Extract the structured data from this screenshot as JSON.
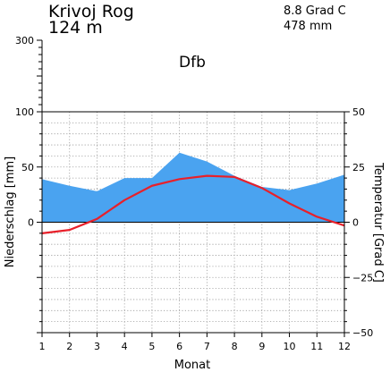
{
  "header": {
    "station": "Krivoj Rog",
    "elevation": "124  m",
    "annual_temp": "8.8 Grad C",
    "annual_precip": "478 mm",
    "climate_class": "Dfb"
  },
  "chart_data": {
    "type": "climate-diagram",
    "x": [
      1,
      2,
      3,
      4,
      5,
      6,
      7,
      8,
      9,
      10,
      11,
      12
    ],
    "xlabel": "Monat",
    "series": [
      {
        "name": "Niederschlag",
        "unit": "mm",
        "type": "area",
        "axis": "left",
        "color": "#4aa3f0",
        "values": [
          39,
          33,
          28,
          40,
          40,
          63,
          55,
          42,
          32,
          29,
          35,
          43
        ]
      },
      {
        "name": "Temperatur",
        "unit": "Grad C",
        "type": "line",
        "axis": "right",
        "color": "#e8202a",
        "values": [
          -5.0,
          -3.5,
          1.5,
          10.0,
          16.5,
          19.5,
          21.0,
          20.5,
          15.5,
          8.5,
          2.5,
          -1.5
        ]
      }
    ],
    "left_axis": {
      "label": "Niederschlag [mm]",
      "range": [
        -100,
        100
      ],
      "ticks": [
        0,
        50,
        100
      ],
      "upper_ticks": [
        300
      ]
    },
    "right_axis": {
      "label": "Temperatur [Grad C]",
      "range": [
        -50,
        50
      ],
      "ticks": [
        -50,
        -25,
        0,
        25,
        50
      ]
    },
    "grid": true
  }
}
